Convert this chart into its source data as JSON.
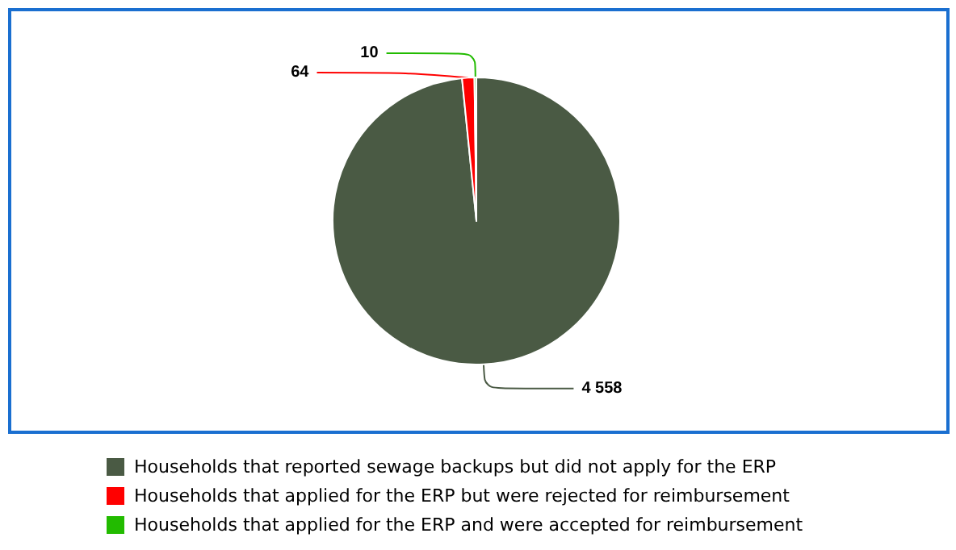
{
  "chart_data": {
    "type": "pie",
    "categories": [
      "Households that reported sewage backups but did not apply for the ERP",
      "Households that applied for the ERP but were rejected for reimbursement",
      "Households that applied for the ERP and were accepted for reimbursement"
    ],
    "values": [
      4558,
      64,
      10
    ],
    "colors": [
      "#4a5a44",
      "#ff0000",
      "#22bb00"
    ],
    "value_labels": [
      "4 558",
      "64",
      "10"
    ],
    "legend": "bottom"
  }
}
